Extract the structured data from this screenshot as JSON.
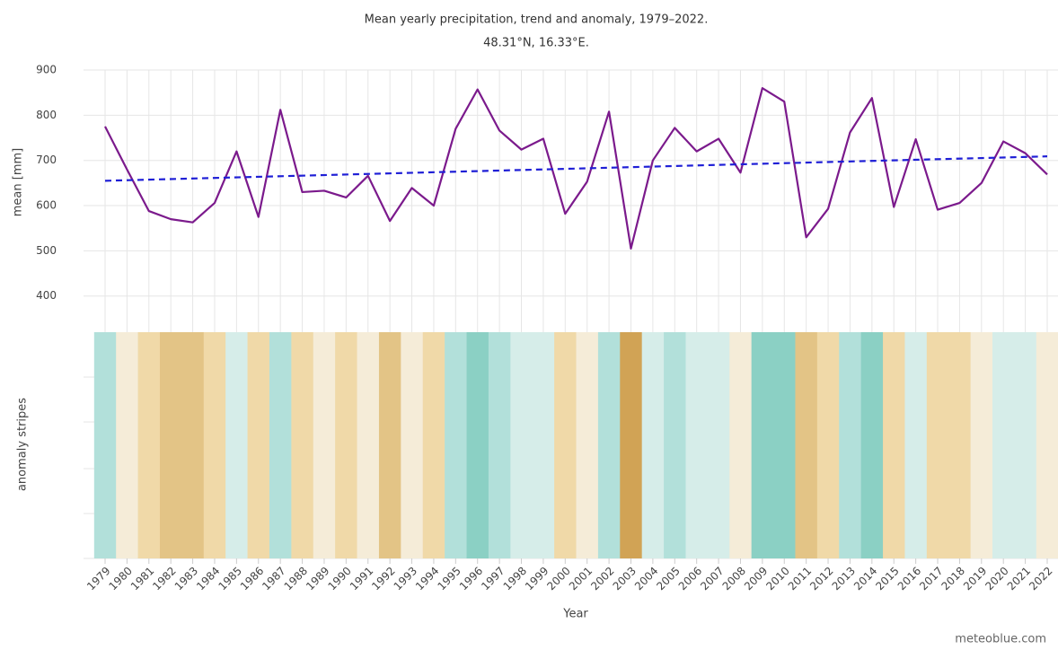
{
  "chart_data": {
    "type": "line",
    "title": "Mean yearly precipitation, trend and anomaly, 1979–2022.",
    "subtitle": "48.31°N, 16.33°E.",
    "y_label": "mean [mm]",
    "x_label": "Year",
    "stripes_label": "anomaly stripes",
    "credit": "meteoblue.com",
    "x": [
      1979,
      1980,
      1981,
      1982,
      1983,
      1984,
      1985,
      1986,
      1987,
      1988,
      1989,
      1990,
      1991,
      1992,
      1993,
      1994,
      1995,
      1996,
      1997,
      1998,
      1999,
      2000,
      2001,
      2002,
      2003,
      2004,
      2005,
      2006,
      2007,
      2008,
      2009,
      2010,
      2011,
      2012,
      2013,
      2014,
      2015,
      2016,
      2017,
      2018,
      2019,
      2020,
      2021,
      2022
    ],
    "xlim": [
      1979,
      2022
    ],
    "series": [
      {
        "color": "#7b1a8c",
        "values": [
          775,
          680,
          588,
          570,
          563,
          606,
          720,
          575,
          812,
          630,
          633,
          618,
          666,
          566,
          639,
          600,
          770,
          857,
          766,
          724,
          748,
          582,
          653,
          808,
          505,
          700,
          772,
          720,
          748,
          673,
          860,
          830,
          530,
          593,
          762,
          838,
          597,
          747,
          591,
          606,
          650,
          742,
          716,
          669
        ]
      }
    ],
    "trend": {
      "color": "#1f1fd6",
      "x": [
        1979,
        2022
      ],
      "values": [
        655,
        709
      ]
    },
    "stripe_colors": [
      "#b2e0da",
      "#f5ecd8",
      "#f0d9a8",
      "#e3c486",
      "#e3c486",
      "#f0d9a8",
      "#d6ede9",
      "#f0d9a8",
      "#b2e0da",
      "#f0d9a8",
      "#f5ecd8",
      "#f0d9a8",
      "#f5ecd8",
      "#e3c486",
      "#f5ecd8",
      "#f0d9a8",
      "#b2e0da",
      "#8bd0c4",
      "#b2e0da",
      "#d6ede9",
      "#d6ede9",
      "#f0d9a8",
      "#f5ecd8",
      "#b2e0da",
      "#d1a355",
      "#d6ede9",
      "#b2e0da",
      "#d6ede9",
      "#d6ede9",
      "#f5ecd8",
      "#8bd0c4",
      "#8bd0c4",
      "#e3c486",
      "#f0d9a8",
      "#b2e0da",
      "#8bd0c4",
      "#f0d9a8",
      "#d6ede9",
      "#f0d9a8",
      "#f0d9a8",
      "#f5ecd8",
      "#d6ede9",
      "#d6ede9",
      "#f5ecd8"
    ],
    "ylim": [
      320,
      900
    ],
    "yticks": [
      400,
      500,
      600,
      700,
      800,
      900
    ],
    "grid": true
  }
}
